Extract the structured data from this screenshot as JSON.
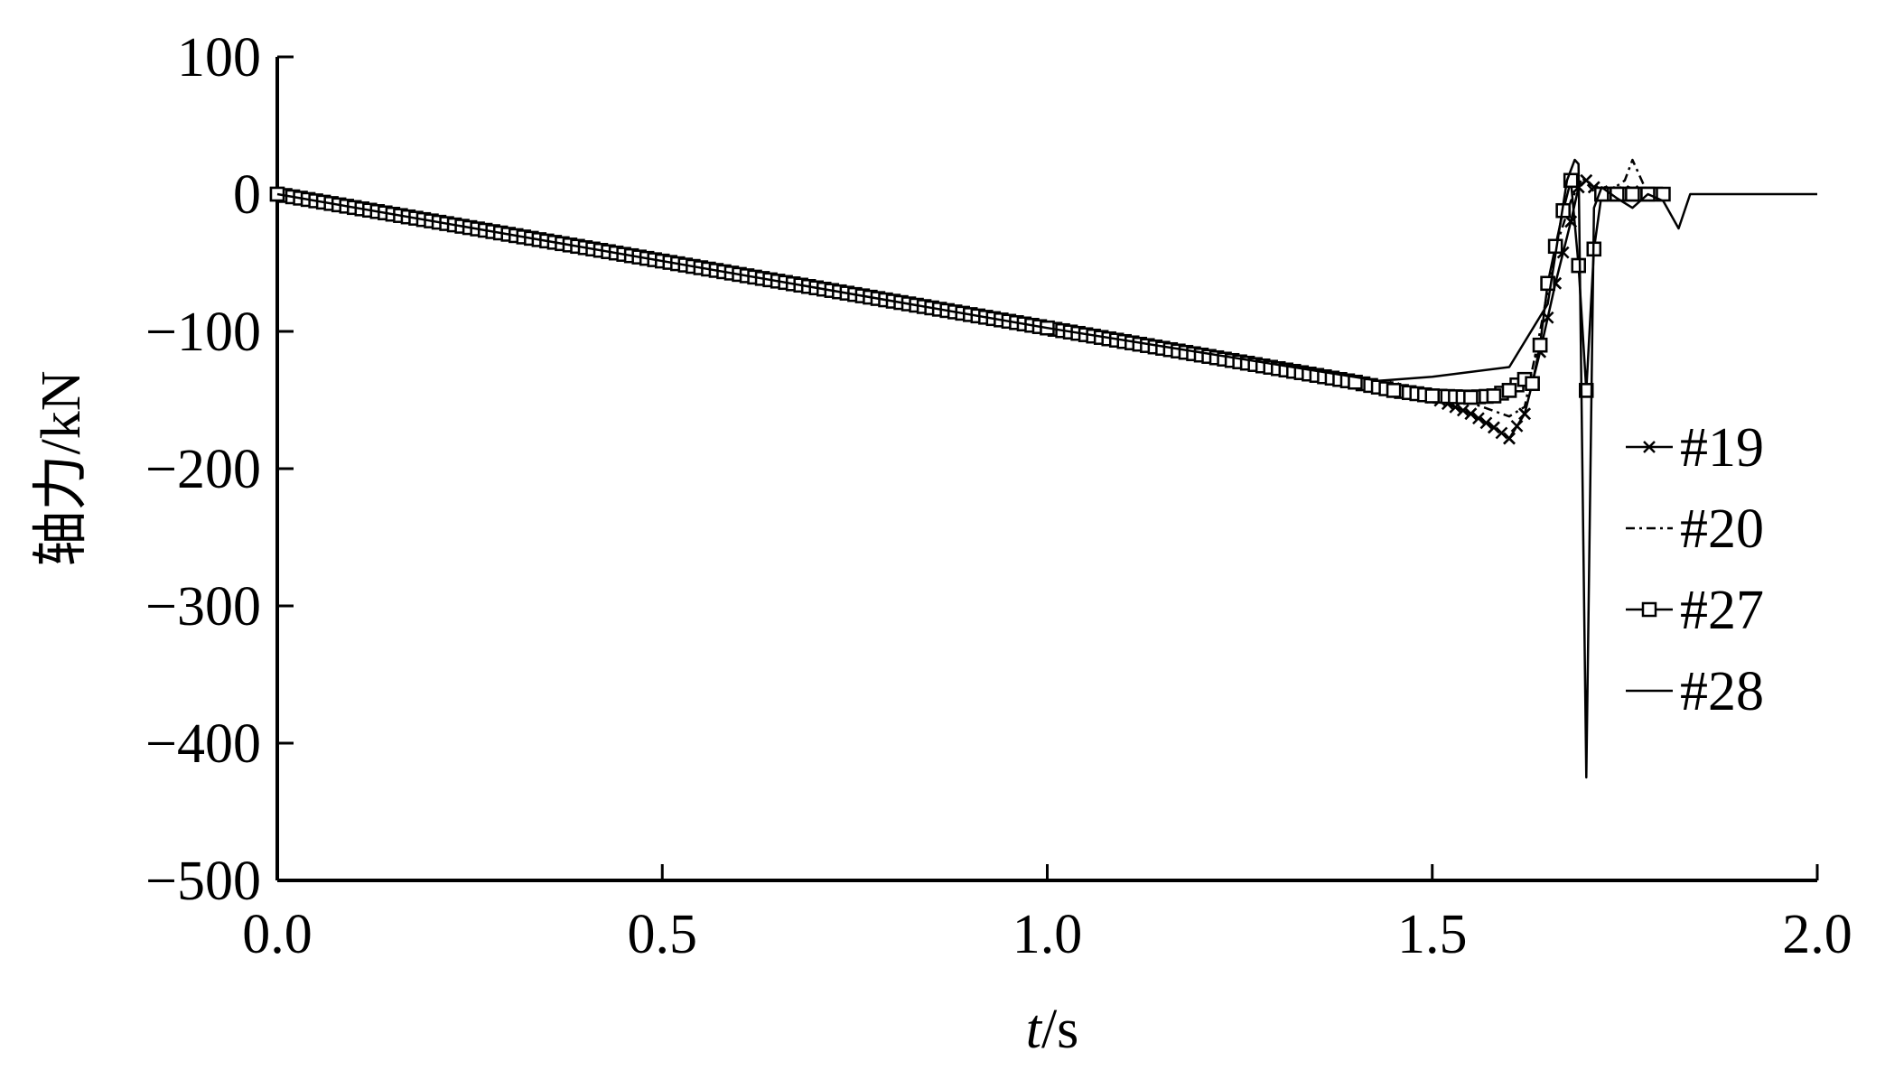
{
  "chart_data": {
    "type": "line",
    "title": "",
    "xlabel_italic": "t",
    "xlabel_rest": "/s",
    "ylabel": "轴力/kN",
    "xlim": [
      0.0,
      2.0
    ],
    "ylim": [
      -500,
      100
    ],
    "x_ticks": [
      0.0,
      0.5,
      1.0,
      1.5,
      2.0
    ],
    "x_tick_labels": [
      "0.0",
      "0.5",
      "1.0",
      "1.5",
      "2.0"
    ],
    "y_ticks": [
      100,
      0,
      -100,
      -200,
      -300,
      -400,
      -500
    ],
    "y_tick_labels": [
      "100",
      "0",
      "−100",
      "−200",
      "−300",
      "−400",
      "−500"
    ],
    "legend_position": "right",
    "series": [
      {
        "name": "#19",
        "marker": "x",
        "style": "solid",
        "points": [
          [
            0.0,
            0
          ],
          [
            0.2,
            -19.5
          ],
          [
            0.4,
            -39
          ],
          [
            0.6,
            -58.5
          ],
          [
            0.8,
            -78
          ],
          [
            1.0,
            -97.5
          ],
          [
            1.2,
            -117
          ],
          [
            1.4,
            -136.5
          ],
          [
            1.45,
            -141.5
          ],
          [
            1.5,
            -148
          ],
          [
            1.55,
            -160
          ],
          [
            1.58,
            -170
          ],
          [
            1.6,
            -178
          ],
          [
            1.62,
            -160
          ],
          [
            1.64,
            -115
          ],
          [
            1.66,
            -65
          ],
          [
            1.68,
            -20
          ],
          [
            1.69,
            5
          ],
          [
            1.7,
            10
          ],
          [
            1.71,
            5
          ],
          [
            1.72,
            2
          ],
          [
            1.74,
            1
          ],
          [
            1.76,
            2
          ],
          [
            1.78,
            0
          ],
          [
            1.8,
            0
          ]
        ]
      },
      {
        "name": "#20",
        "marker": "none",
        "style": "dashdot",
        "points": [
          [
            0.0,
            0
          ],
          [
            1.0,
            -97.5
          ],
          [
            1.4,
            -136.5
          ],
          [
            1.5,
            -146
          ],
          [
            1.55,
            -152
          ],
          [
            1.6,
            -162
          ],
          [
            1.62,
            -155
          ],
          [
            1.64,
            -100
          ],
          [
            1.66,
            -40
          ],
          [
            1.68,
            -5
          ],
          [
            1.695,
            12
          ],
          [
            1.7,
            8
          ],
          [
            1.71,
            2
          ],
          [
            1.73,
            2
          ],
          [
            1.75,
            10
          ],
          [
            1.76,
            25
          ],
          [
            1.78,
            0
          ],
          [
            1.8,
            0
          ]
        ]
      },
      {
        "name": "#27",
        "marker": "square",
        "style": "solid",
        "points": [
          [
            0.0,
            0
          ],
          [
            1.0,
            -97.5
          ],
          [
            1.4,
            -137
          ],
          [
            1.45,
            -143
          ],
          [
            1.5,
            -147
          ],
          [
            1.55,
            -148
          ],
          [
            1.58,
            -147
          ],
          [
            1.6,
            -143
          ],
          [
            1.62,
            -135
          ],
          [
            1.63,
            -138
          ],
          [
            1.64,
            -110
          ],
          [
            1.65,
            -65
          ],
          [
            1.66,
            -38
          ],
          [
            1.67,
            -12
          ],
          [
            1.68,
            10
          ],
          [
            1.69,
            -52
          ],
          [
            1.7,
            -143
          ],
          [
            1.71,
            -40
          ],
          [
            1.72,
            0
          ],
          [
            1.74,
            0
          ],
          [
            1.76,
            0
          ],
          [
            1.78,
            0
          ],
          [
            1.8,
            0
          ]
        ]
      },
      {
        "name": "#28",
        "marker": "none",
        "style": "solid",
        "points": [
          [
            0.0,
            0
          ],
          [
            1.0,
            -97.5
          ],
          [
            1.43,
            -136
          ],
          [
            1.5,
            -133
          ],
          [
            1.6,
            -126
          ],
          [
            1.65,
            -80
          ],
          [
            1.675,
            10
          ],
          [
            1.685,
            25
          ],
          [
            1.69,
            22
          ],
          [
            1.7,
            -425
          ],
          [
            1.71,
            -10
          ],
          [
            1.72,
            5
          ],
          [
            1.74,
            -3
          ],
          [
            1.76,
            -10
          ],
          [
            1.78,
            0
          ],
          [
            1.8,
            -5
          ],
          [
            1.82,
            -25
          ],
          [
            1.835,
            0
          ],
          [
            1.9,
            0
          ],
          [
            2.0,
            0
          ]
        ]
      }
    ]
  }
}
